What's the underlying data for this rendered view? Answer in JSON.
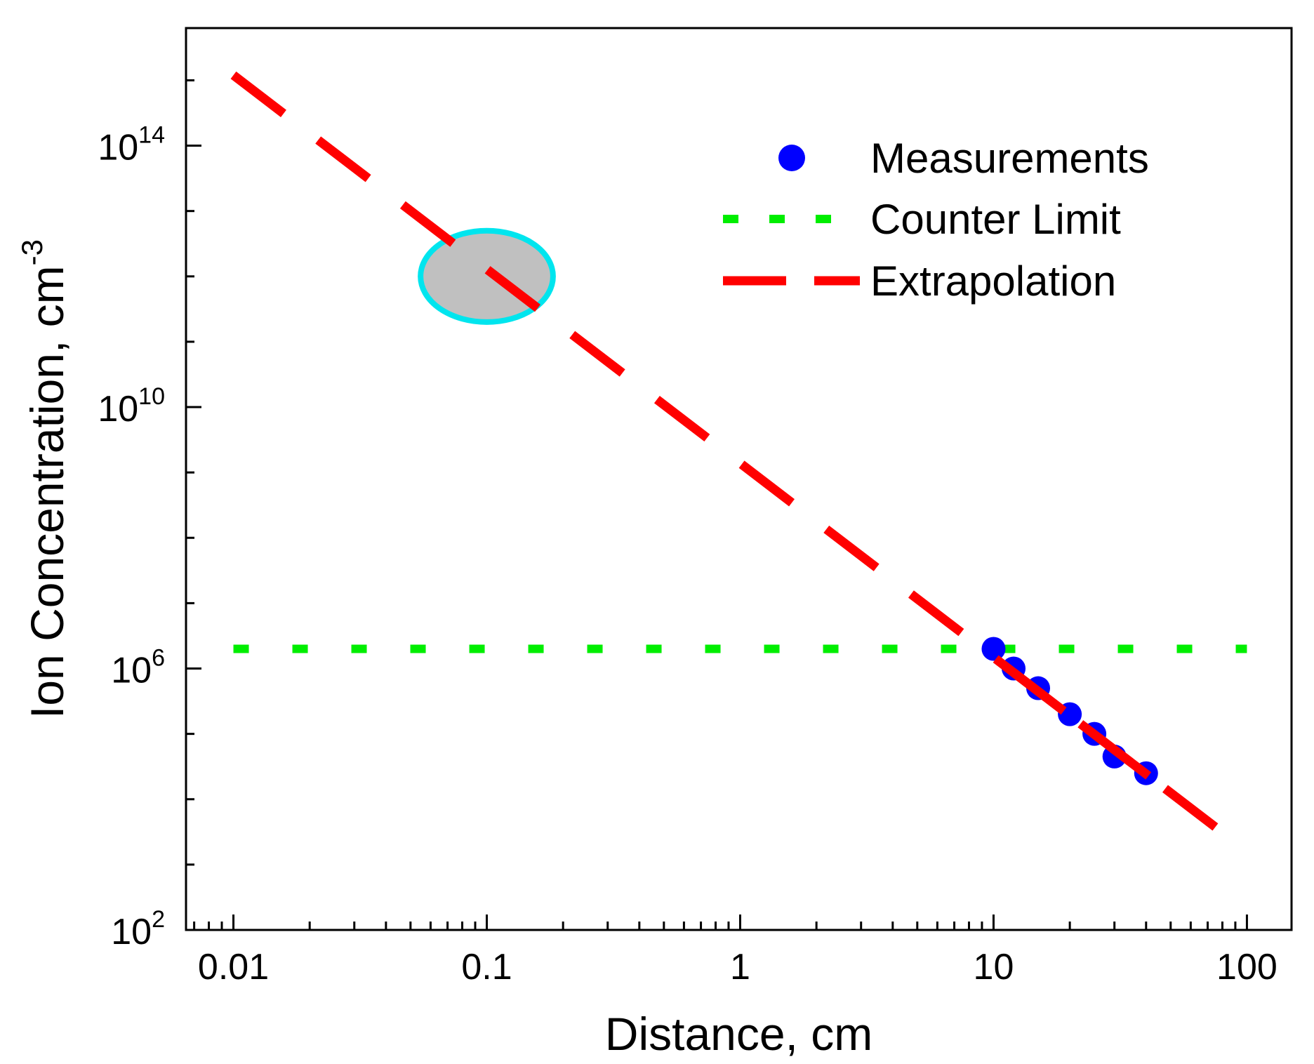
{
  "chart_data": {
    "type": "scatter",
    "xlabel": "Distance, cm",
    "ylabel": "Ion Concentration, cm",
    "ylabel_superscript": "-3",
    "x_scale": "log",
    "y_scale": "log",
    "xlim": [
      0.0065,
      150
    ],
    "ylim": [
      100,
      6300000000000000.0
    ],
    "x_ticks": [
      {
        "value": 0.01,
        "label": "0.01"
      },
      {
        "value": 0.1,
        "label": "0.1"
      },
      {
        "value": 1,
        "label": "1"
      },
      {
        "value": 10,
        "label": "10"
      },
      {
        "value": 100,
        "label": "100"
      }
    ],
    "y_ticks": [
      {
        "value": 100,
        "base": "10",
        "exp": "2"
      },
      {
        "value": 1000000,
        "base": "10",
        "exp": "6"
      },
      {
        "value": 10000000000,
        "base": "10",
        "exp": "10"
      },
      {
        "value": 100000000000000,
        "base": "10",
        "exp": "14"
      }
    ],
    "grid": false,
    "legend_position": "top-right",
    "legend": [
      {
        "label": "Measurements",
        "key": "measurements"
      },
      {
        "label": "Counter Limit",
        "key": "counter"
      },
      {
        "label": "Extrapolation",
        "key": "extrapolation"
      }
    ],
    "series": [
      {
        "key": "measurements",
        "type": "scatter",
        "color": "#0000ff",
        "x": [
          10,
          12,
          15,
          20,
          25,
          30,
          40
        ],
        "y": [
          2000000,
          1000000,
          500000,
          200000,
          100000,
          45000,
          25000
        ]
      },
      {
        "key": "counter",
        "type": "line",
        "style": "dotted",
        "color": "#00ee00",
        "x": [
          0.01,
          100
        ],
        "y": [
          2000000,
          2000000
        ]
      },
      {
        "key": "extrapolation",
        "type": "line",
        "style": "dashed",
        "color": "#ff0000",
        "x": [
          0.01,
          100
        ],
        "y": [
          1200000000000000,
          1600
        ]
      }
    ],
    "annotations": [
      {
        "type": "ellipse",
        "fill": "#c0c0c0",
        "stroke": "#00e5ee",
        "cx": 0.1,
        "cy": 1000000000000,
        "x_from": 0.06,
        "x_to": 0.2,
        "y_from": 200000000000,
        "y_to": 5000000000000
      }
    ]
  }
}
